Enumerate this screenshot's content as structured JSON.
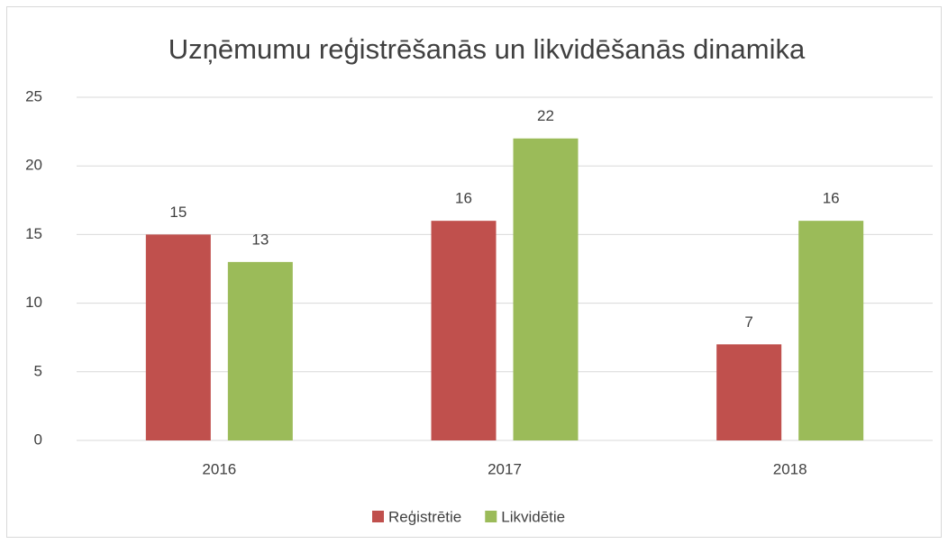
{
  "chart_data": {
    "type": "bar",
    "title": "Uzņēmumu reģistrēšanās un likvidēšanās dinamika",
    "categories": [
      "2016",
      "2017",
      "2018"
    ],
    "series": [
      {
        "name": "Reģistrētie",
        "color": "#c0504d",
        "values": [
          15,
          16,
          7
        ]
      },
      {
        "name": "Likvidētie",
        "color": "#9bbb59",
        "values": [
          13,
          22,
          16
        ]
      }
    ],
    "ylim": [
      0,
      25
    ],
    "yticks": [
      0,
      5,
      10,
      15,
      20,
      25
    ],
    "grid": true,
    "legend": "bottom",
    "data_labels": true
  }
}
